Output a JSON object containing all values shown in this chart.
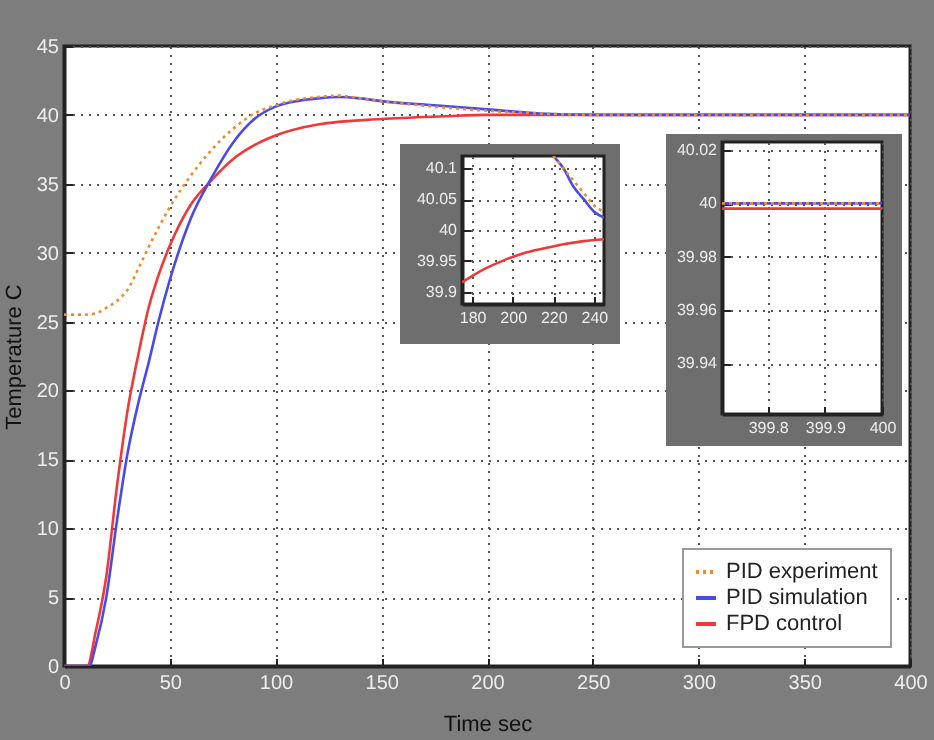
{
  "chart_data": [
    {
      "type": "line",
      "xlabel": "Time sec",
      "ylabel": "Temperature C",
      "xlim": [
        0,
        400
      ],
      "ylim": [
        0,
        45
      ],
      "xticks": [
        0,
        50,
        100,
        150,
        200,
        250,
        300,
        350,
        400
      ],
      "yticks": [
        0,
        5,
        10,
        15,
        20,
        25,
        30,
        35,
        40,
        45
      ],
      "grid": true,
      "legend": "bottom right",
      "series": [
        {
          "name": "PID experiment",
          "color": "#f08a30",
          "line_style": "dotted",
          "x": [
            0,
            10,
            15,
            20,
            25,
            30,
            35,
            40,
            45,
            50,
            60,
            70,
            80,
            90,
            100,
            110,
            120,
            130,
            140,
            150,
            175,
            200,
            225,
            250,
            300,
            400
          ],
          "values": [
            25.5,
            25.5,
            25.6,
            26,
            26.5,
            27.3,
            28.8,
            30.4,
            31.9,
            33.3,
            35.6,
            37.5,
            39,
            40.1,
            40.7,
            41.1,
            41.3,
            41.4,
            41.2,
            41,
            40.6,
            40.3,
            40.1,
            40,
            40,
            40
          ]
        },
        {
          "name": "PID simulation",
          "color": "#4a4ae8",
          "line_style": "solid",
          "x": [
            0,
            12,
            15,
            20,
            25,
            30,
            35,
            40,
            45,
            50,
            60,
            70,
            80,
            90,
            100,
            110,
            120,
            130,
            140,
            150,
            175,
            200,
            225,
            250,
            300,
            400
          ],
          "values": [
            0,
            0,
            1.5,
            5,
            10.5,
            15.4,
            19,
            22,
            25.2,
            28,
            32.5,
            35.5,
            38,
            39.7,
            40.6,
            41,
            41.2,
            41.3,
            41.2,
            41,
            40.7,
            40.4,
            40.1,
            40,
            40,
            40
          ]
        },
        {
          "name": "FPD control",
          "color": "#f03838",
          "line_style": "solid",
          "x": [
            0,
            11,
            15,
            20,
            25,
            30,
            35,
            40,
            45,
            50,
            60,
            70,
            80,
            90,
            100,
            120,
            150,
            180,
            200,
            245,
            300,
            400
          ],
          "values": [
            0,
            0,
            2.5,
            6.5,
            13,
            18.5,
            22.5,
            26,
            28.5,
            30.5,
            33.5,
            35.3,
            36.8,
            37.8,
            38.5,
            39.3,
            39.7,
            39.9,
            40,
            40,
            40,
            40
          ]
        }
      ]
    },
    {
      "type": "line",
      "xlim": [
        175,
        245
      ],
      "ylim": [
        39.88,
        40.12
      ],
      "xticks": [
        180,
        200,
        220,
        240
      ],
      "yticks": [
        39.9,
        39.95,
        40,
        40.05,
        40.1
      ],
      "grid": true,
      "series": [
        {
          "color": "#f08a30",
          "line_style": "dotted",
          "x": [
            220,
            225,
            230,
            235,
            240,
            245
          ],
          "values": [
            40.12,
            40.1,
            40.08,
            40.06,
            40.04,
            40.03
          ]
        },
        {
          "color": "#4a4ae8",
          "line_style": "solid",
          "x": [
            220,
            225,
            230,
            235,
            240,
            245
          ],
          "values": [
            40.12,
            40.1,
            40.07,
            40.05,
            40.03,
            40.02
          ]
        },
        {
          "color": "#f03838",
          "line_style": "solid",
          "x": [
            175,
            185,
            195,
            205,
            215,
            225,
            235,
            245
          ],
          "values": [
            39.915,
            39.935,
            39.95,
            39.962,
            39.97,
            39.977,
            39.982,
            39.985
          ]
        }
      ]
    },
    {
      "type": "line",
      "xlim": [
        399.72,
        400
      ],
      "ylim": [
        39.921,
        40.023
      ],
      "xticks": [
        399.8,
        399.9,
        400
      ],
      "yticks": [
        39.94,
        39.96,
        39.98,
        40,
        40.02
      ],
      "grid": true,
      "series": [
        {
          "color": "#f08a30",
          "line_style": "dotted",
          "x": [
            399.72,
            400
          ],
          "values": [
            40,
            40
          ]
        },
        {
          "color": "#4a4ae8",
          "line_style": "solid",
          "x": [
            399.72,
            400
          ],
          "values": [
            40,
            40
          ]
        },
        {
          "color": "#f03838",
          "line_style": "solid",
          "x": [
            399.72,
            400
          ],
          "values": [
            39.998,
            39.998
          ]
        }
      ]
    }
  ]
}
